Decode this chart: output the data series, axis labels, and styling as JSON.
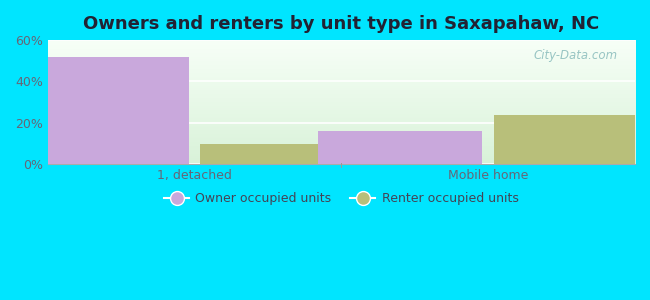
{
  "title": "Owners and renters by unit type in Saxapahaw, NC",
  "categories": [
    "1, detached",
    "Mobile home"
  ],
  "owner_values": [
    52,
    16
  ],
  "renter_values": [
    10,
    24
  ],
  "owner_color": "#c9a8dc",
  "renter_color": "#b8bf7a",
  "ylim": [
    0,
    60
  ],
  "yticks": [
    0,
    20,
    40,
    60
  ],
  "ytick_labels": [
    "0%",
    "20%",
    "40%",
    "60%"
  ],
  "outer_background": "#00e5ff",
  "bar_width": 0.28,
  "group_positions": [
    0.25,
    0.75
  ],
  "legend_owner": "Owner occupied units",
  "legend_renter": "Renter occupied units",
  "watermark": "City-Data.com",
  "title_fontsize": 13,
  "tick_fontsize": 9,
  "title_color": "#222233"
}
